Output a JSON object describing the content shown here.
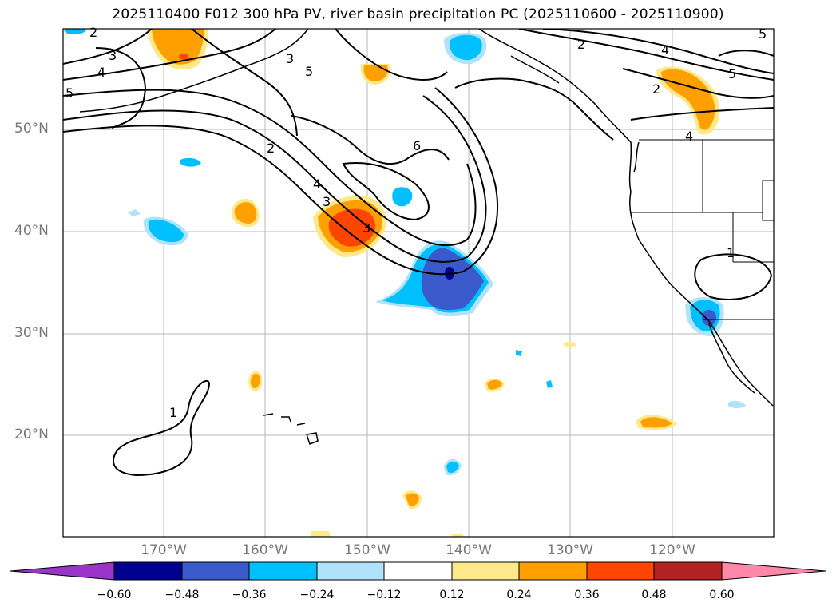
{
  "title": "2025110400 F012 300 hPa PV, river basin precipitation PC (2025110600 - 2025110900)",
  "map": {
    "lat_ticks": [
      "50°N",
      "40°N",
      "30°N",
      "20°N"
    ],
    "lon_ticks": [
      "170°W",
      "160°W",
      "150°W",
      "140°W",
      "130°W",
      "120°W"
    ],
    "contour_labels": [
      "2",
      "3",
      "4",
      "5",
      "3",
      "2",
      "5",
      "2",
      "4",
      "3",
      "6",
      "3",
      "4",
      "5",
      "2",
      "1",
      "1",
      "5",
      "4"
    ]
  },
  "colorbar": {
    "ticks": [
      "−0.60",
      "−0.48",
      "−0.36",
      "−0.24",
      "−0.12",
      "0.12",
      "0.24",
      "0.36",
      "0.48",
      "0.60"
    ],
    "colors": [
      "#9a35c9",
      "#000090",
      "#3a5acc",
      "#00bfff",
      "#b0e2fa",
      "#ffffff",
      "#fde98a",
      "#ff9f00",
      "#ff4500",
      "#b22222",
      "#ff88aa"
    ]
  }
}
